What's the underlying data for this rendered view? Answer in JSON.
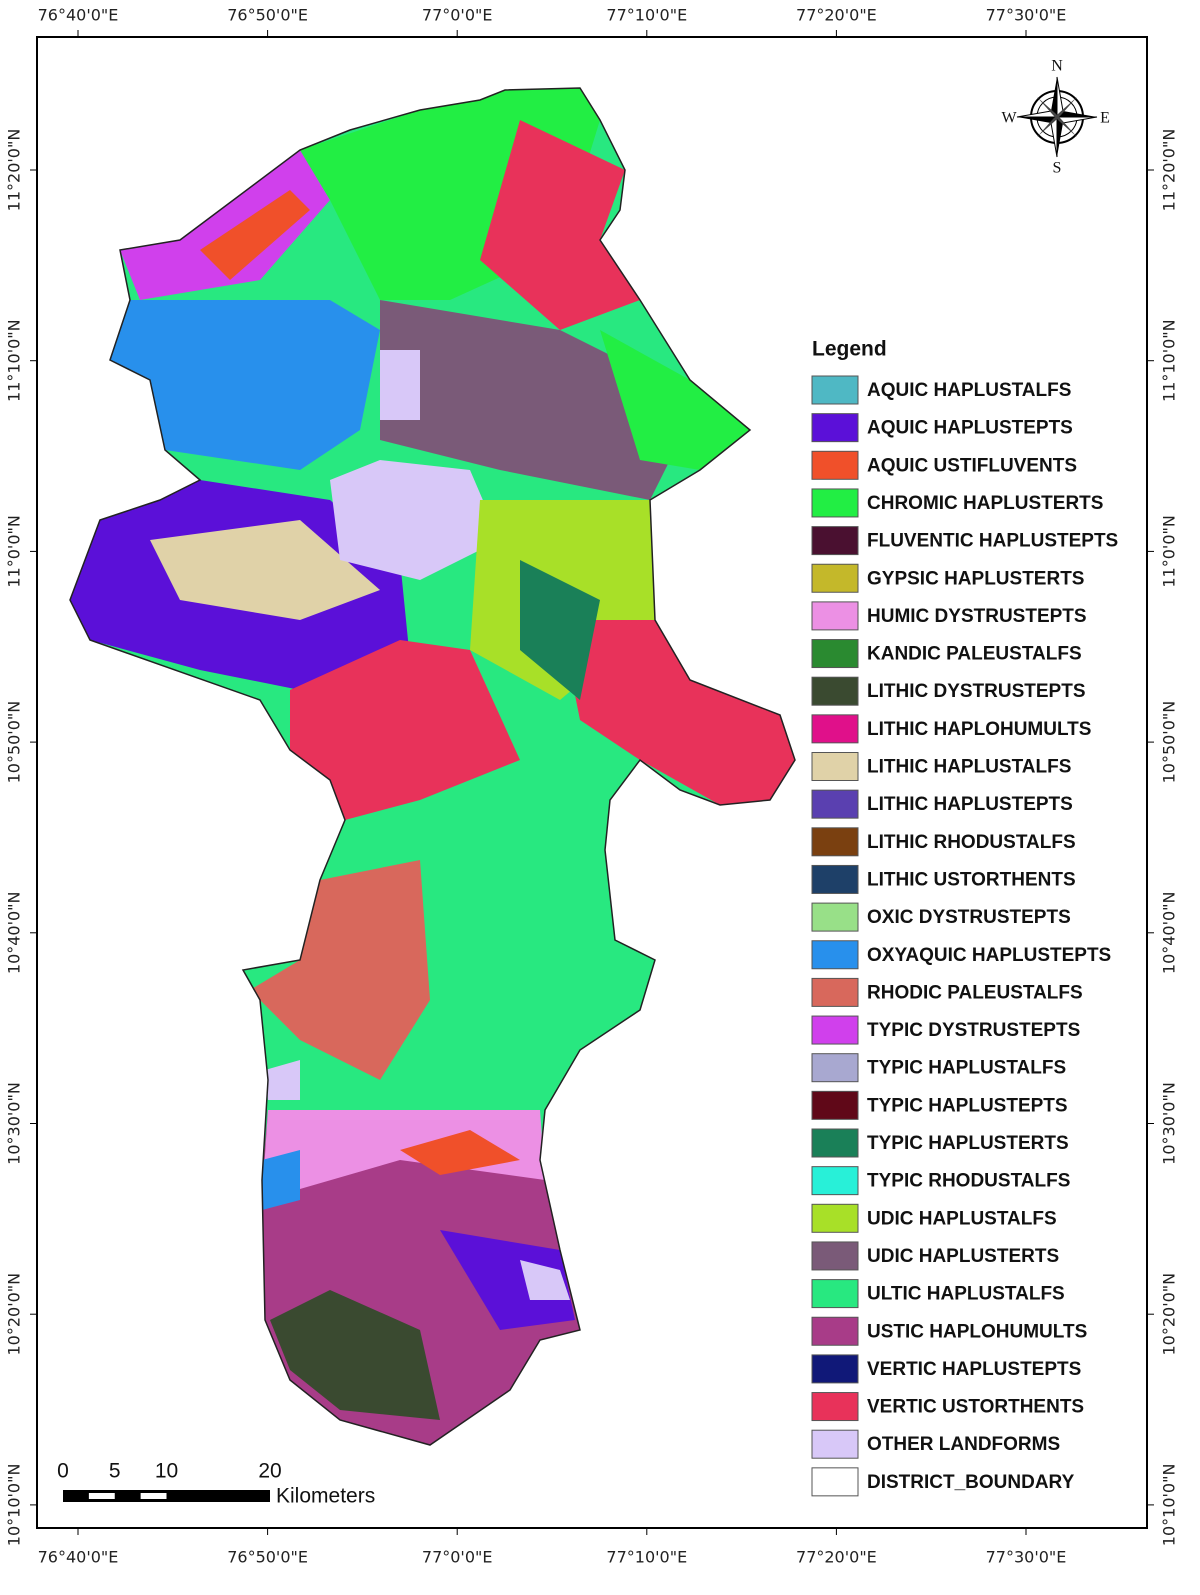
{
  "map": {
    "longitude_labels": [
      "76°40'0\"E",
      "76°50'0\"E",
      "77°0'0\"E",
      "77°10'0\"E",
      "77°20'0\"E",
      "77°30'0\"E"
    ],
    "latitude_labels": [
      "11°20'0\"N",
      "11°10'0\"N",
      "11°0'0\"N",
      "10°50'0\"N",
      "10°40'0\"N",
      "10°30'0\"N",
      "10°20'0\"N",
      "10°10'0\"N"
    ],
    "compass": {
      "north": "N",
      "east": "E",
      "south": "S",
      "west": "W"
    },
    "scale_bar": {
      "ticks": [
        0,
        5,
        10,
        20
      ],
      "unit": "Kilometers"
    },
    "legend": {
      "title": "Legend",
      "items": [
        {
          "label": "AQUIC HAPLUSTALFS",
          "color": "#4fb8c4"
        },
        {
          "label": "AQUIC HAPLUSTEPTS",
          "color": "#5b10d8"
        },
        {
          "label": "AQUIC USTIFLUVENTS",
          "color": "#f0502a"
        },
        {
          "label": "CHROMIC HAPLUSTERTS",
          "color": "#22ee44"
        },
        {
          "label": "FLUVENTIC HAPLUSTEPTS",
          "color": "#4a1030"
        },
        {
          "label": "GYPSIC HAPLUSTERTS",
          "color": "#c4b82a"
        },
        {
          "label": "HUMIC DYSTRUSTEPTS",
          "color": "#ec90e4"
        },
        {
          "label": "KANDIC PALEUSTALFS",
          "color": "#2a8a30"
        },
        {
          "label": "LITHIC DYSTRUSTEPTS",
          "color": "#3a4a30"
        },
        {
          "label": "LITHIC HAPLOHUMULTS",
          "color": "#e0108a"
        },
        {
          "label": "LITHIC HAPLUSTALFS",
          "color": "#e0d2a8"
        },
        {
          "label": "LITHIC HAPLUSTEPTS",
          "color": "#5a40b0"
        },
        {
          "label": "LITHIC RHODUSTALFS",
          "color": "#7a4010"
        },
        {
          "label": "LITHIC USTORTHENTS",
          "color": "#1e4068"
        },
        {
          "label": "OXIC DYSTRUSTEPTS",
          "color": "#98e088"
        },
        {
          "label": "OXYAQUIC HAPLUSTEPTS",
          "color": "#2890ec"
        },
        {
          "label": "RHODIC PALEUSTALFS",
          "color": "#d8685c"
        },
        {
          "label": "TYPIC DYSTRUSTEPTS",
          "color": "#d040ec"
        },
        {
          "label": "TYPIC HAPLUSTALFS",
          "color": "#a8a8d0"
        },
        {
          "label": "TYPIC HAPLUSTEPTS",
          "color": "#600818"
        },
        {
          "label": "TYPIC HAPLUSTERTS",
          "color": "#1a8058"
        },
        {
          "label": "TYPIC RHODUSTALFS",
          "color": "#28f0d8"
        },
        {
          "label": "UDIC HAPLUSTALFS",
          "color": "#a8e028"
        },
        {
          "label": "UDIC HAPLUSTERTS",
          "color": "#7a5a78"
        },
        {
          "label": "ULTIC HAPLUSTALFS",
          "color": "#28e880"
        },
        {
          "label": "USTIC HAPLOHUMULTS",
          "color": "#a83c88"
        },
        {
          "label": "VERTIC HAPLUSTEPTS",
          "color": "#101878"
        },
        {
          "label": "VERTIC USTORTHENTS",
          "color": "#e8325a"
        },
        {
          "label": "OTHER LANDFORMS",
          "color": "#d8c8f8"
        },
        {
          "label": "DISTRICT_BOUNDARY",
          "color": "#ffffff"
        }
      ]
    }
  }
}
